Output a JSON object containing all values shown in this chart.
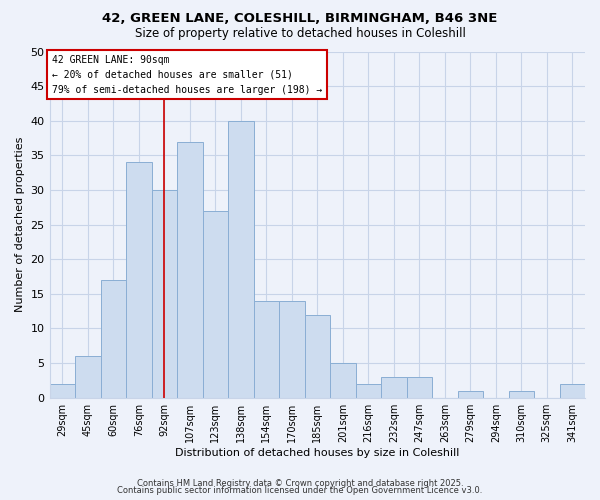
{
  "title_line1": "42, GREEN LANE, COLESHILL, BIRMINGHAM, B46 3NE",
  "title_line2": "Size of property relative to detached houses in Coleshill",
  "xlabel": "Distribution of detached houses by size in Coleshill",
  "ylabel": "Number of detached properties",
  "bar_labels": [
    "29sqm",
    "45sqm",
    "60sqm",
    "76sqm",
    "92sqm",
    "107sqm",
    "123sqm",
    "138sqm",
    "154sqm",
    "170sqm",
    "185sqm",
    "201sqm",
    "216sqm",
    "232sqm",
    "247sqm",
    "263sqm",
    "279sqm",
    "294sqm",
    "310sqm",
    "325sqm",
    "341sqm"
  ],
  "bar_heights": [
    2,
    6,
    17,
    34,
    30,
    37,
    27,
    40,
    14,
    14,
    12,
    5,
    2,
    3,
    3,
    0,
    1,
    0,
    1,
    0,
    2
  ],
  "bar_color": "#cddcef",
  "bar_edge_color": "#8aaed4",
  "vline_x_index": 4,
  "vline_color": "#cc0000",
  "annotation_title": "42 GREEN LANE: 90sqm",
  "annotation_line1": "← 20% of detached houses are smaller (51)",
  "annotation_line2": "79% of semi-detached houses are larger (198) →",
  "annotation_box_color": "#ffffff",
  "annotation_box_edge": "#cc0000",
  "ylim": [
    0,
    50
  ],
  "yticks": [
    0,
    5,
    10,
    15,
    20,
    25,
    30,
    35,
    40,
    45,
    50
  ],
  "footnote1": "Contains HM Land Registry data © Crown copyright and database right 2025.",
  "footnote2": "Contains public sector information licensed under the Open Government Licence v3.0.",
  "bg_color": "#eef2fa",
  "grid_color": "#c8d4e8"
}
